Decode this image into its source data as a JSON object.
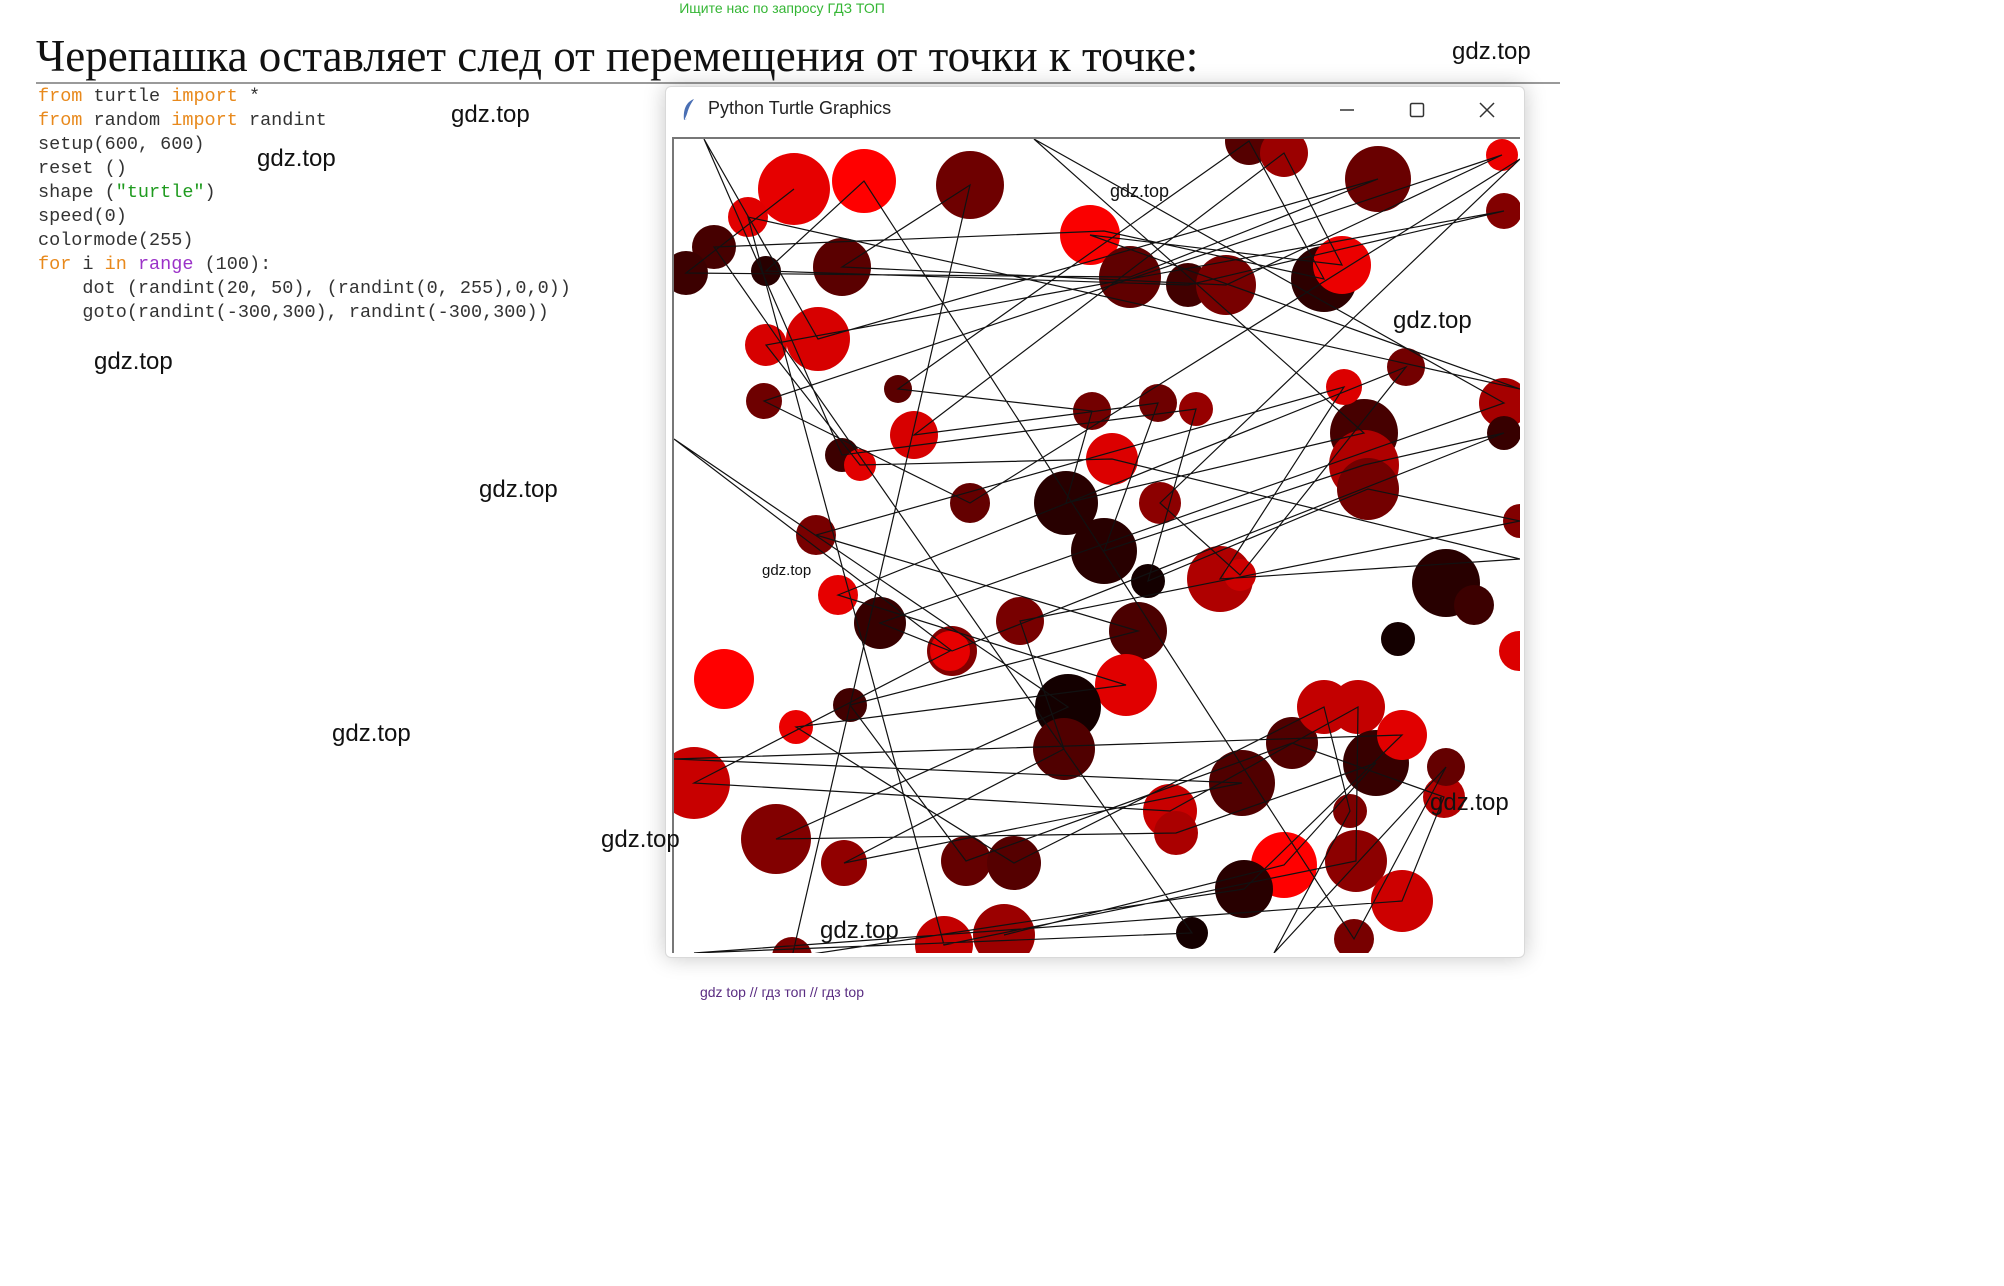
{
  "top_banner": "Ищите нас по запросу ГДЗ ТОП",
  "heading": "Черепашка оставляет след от перемещения от точки к точке:",
  "code_lines": [
    [
      {
        "t": "from",
        "c": "kw"
      },
      {
        "t": " turtle "
      },
      {
        "t": "import",
        "c": "kw"
      },
      {
        "t": " *"
      }
    ],
    [
      {
        "t": "from",
        "c": "kw"
      },
      {
        "t": " random "
      },
      {
        "t": "import",
        "c": "kw"
      },
      {
        "t": " randint"
      }
    ],
    [
      {
        "t": "setup(600, 600)"
      }
    ],
    [
      {
        "t": "reset ()"
      }
    ],
    [
      {
        "t": "shape ("
      },
      {
        "t": "\"turtle\"",
        "c": "str"
      },
      {
        "t": ")"
      }
    ],
    [
      {
        "t": "speed(0)"
      }
    ],
    [
      {
        "t": "colormode(255)"
      }
    ],
    [
      {
        "t": "for",
        "c": "kw"
      },
      {
        "t": " i "
      },
      {
        "t": "in",
        "c": "kw"
      },
      {
        "t": " "
      },
      {
        "t": "range",
        "c": "kw2"
      },
      {
        "t": " (100):"
      }
    ],
    [
      {
        "t": "    dot (randint(20, 50), (randint(0, 255),0,0))"
      }
    ],
    [
      {
        "t": "    goto(randint(-300,300), randint(-300,300))"
      }
    ]
  ],
  "window": {
    "title": "Python Turtle Graphics",
    "icon": "feather-icon",
    "controls": [
      "minimize-icon",
      "maximize-icon",
      "close-icon"
    ]
  },
  "watermark_text": "gdz.top",
  "footer": "gdz top  //  гдз топ  //  гдз top",
  "colors": {
    "banner": "#35b635",
    "footer": "#5a2d82",
    "keyword": "#e8891c",
    "builtin": "#9b32c8",
    "string": "#1f9b1f"
  }
}
